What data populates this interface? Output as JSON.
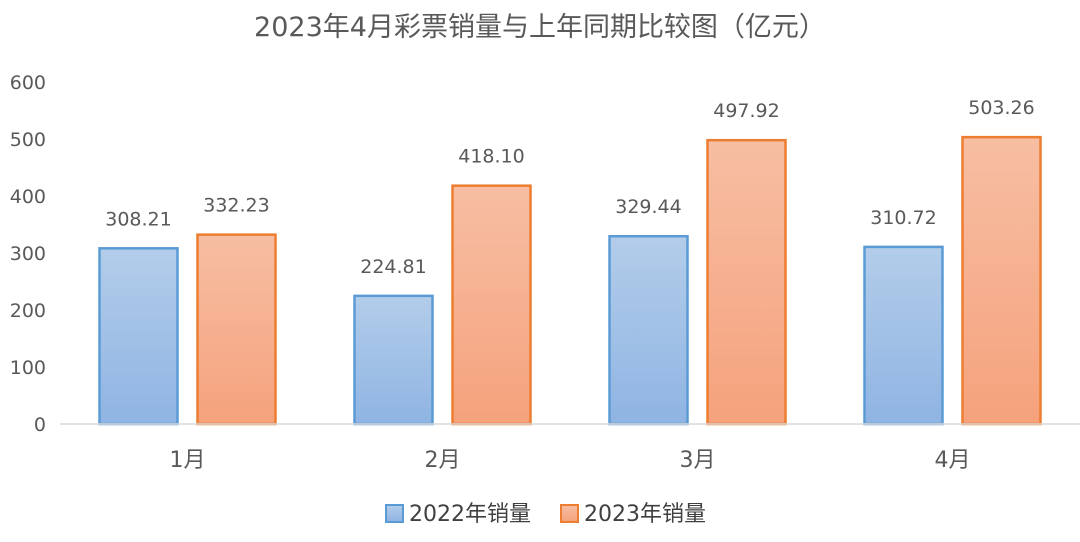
{
  "chart_data": {
    "type": "bar",
    "title": "2023年4月彩票销量与上年同期比较图（亿元）",
    "categories": [
      "1月",
      "2月",
      "3月",
      "4月"
    ],
    "series": [
      {
        "name": "2022年销量",
        "values": [
          308.21,
          224.81,
          329.44,
          310.72
        ],
        "labels": [
          "308.21",
          "224.81",
          "329.44",
          "310.72"
        ],
        "color": "#8fb4e3",
        "stroke": "#5b9bd5"
      },
      {
        "name": "2023年销量",
        "values": [
          332.23,
          418.1,
          497.92,
          503.26
        ],
        "labels": [
          "332.23",
          "418.10",
          "497.92",
          "503.26"
        ],
        "color": "#f7a882",
        "stroke": "#ed7d31"
      }
    ],
    "y_ticks": [
      "0",
      "100",
      "200",
      "300",
      "400",
      "500",
      "600"
    ],
    "ylim": [
      0,
      600
    ],
    "grid": false,
    "legend_position": "bottom"
  }
}
